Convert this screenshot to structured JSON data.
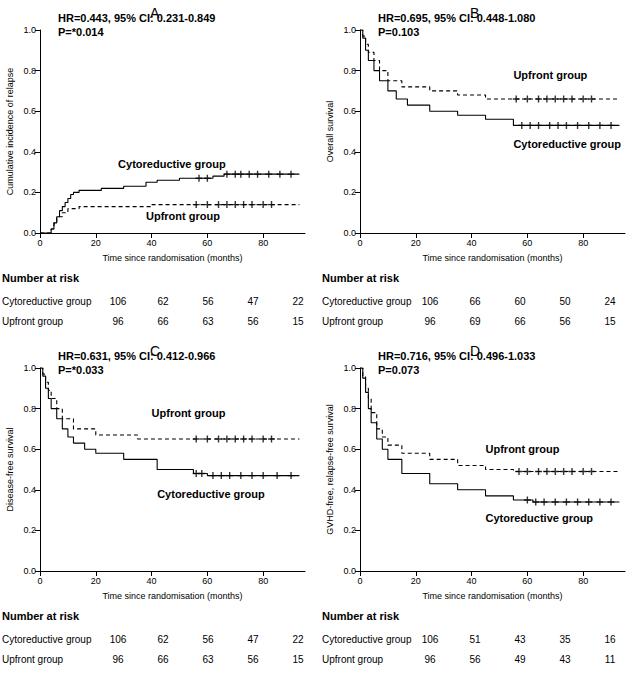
{
  "chart_data": [
    {
      "type": "line",
      "title": "A",
      "annotations": [
        "HR=0.443, 95% CI: 0.231-0.849",
        "P=*0.014"
      ],
      "x_label": "Time since randomisation (months)",
      "y_label": "Cumulative incidence of relapse",
      "xlim": [
        0,
        95
      ],
      "xticks": [
        0,
        20,
        40,
        60,
        80
      ],
      "ylim": [
        0,
        1
      ],
      "yticks": [
        {
          "value": 0,
          "label": "0.0"
        },
        {
          "value": 0.2,
          "label": "0.2"
        },
        {
          "value": 0.4,
          "label": "0.4"
        },
        {
          "value": 0.6,
          "label": "0.6"
        },
        {
          "value": 0.8,
          "label": "0.8"
        },
        {
          "value": 1,
          "label": "1.0"
        }
      ],
      "series": [
        {
          "name": "Cytoreductive group",
          "color": "#000000",
          "line_style": "solid",
          "x": [
            0,
            3,
            4,
            5,
            6,
            7,
            8,
            9,
            10,
            11,
            12,
            14,
            22,
            30,
            38,
            42,
            50,
            62,
            66,
            93
          ],
          "values": [
            0,
            0,
            0.02,
            0.05,
            0.08,
            0.11,
            0.13,
            0.15,
            0.17,
            0.19,
            0.2,
            0.21,
            0.22,
            0.23,
            0.25,
            0.26,
            0.27,
            0.28,
            0.29,
            0.29
          ],
          "censored_x": [
            57,
            60,
            67,
            70,
            72,
            75,
            78,
            82,
            86,
            90
          ]
        },
        {
          "name": "Upfront group",
          "color": "#000000",
          "line_style": "dashed",
          "x": [
            0,
            3,
            4,
            5,
            6,
            8,
            10,
            14,
            40,
            93
          ],
          "values": [
            0,
            0,
            0.02,
            0.05,
            0.08,
            0.1,
            0.12,
            0.13,
            0.14,
            0.14
          ],
          "censored_x": [
            56,
            60,
            64,
            67,
            70,
            73,
            76,
            80,
            83
          ]
        }
      ],
      "number_at_risk": {
        "title": "Number at risk",
        "rows": [
          {
            "name": "Cytoreductive group",
            "values": [
              106,
              62,
              56,
              47,
              22
            ]
          },
          {
            "name": "Upfront group",
            "values": [
              96,
              66,
              63,
              56,
              15
            ]
          }
        ]
      }
    },
    {
      "type": "line",
      "title": "B",
      "annotations": [
        "HR=0.695, 95% CI: 0.448-1.080",
        "P=0.103"
      ],
      "x_label": "Time since randomisation (months)",
      "y_label": "Overall survival",
      "xlim": [
        0,
        95
      ],
      "xticks": [
        0,
        20,
        40,
        60,
        80
      ],
      "ylim": [
        0,
        1
      ],
      "yticks": [
        {
          "value": 0,
          "label": "0.0"
        },
        {
          "value": 0.2,
          "label": "0.2"
        },
        {
          "value": 0.4,
          "label": "0.4"
        },
        {
          "value": 0.6,
          "label": "0.6"
        },
        {
          "value": 0.8,
          "label": "0.8"
        },
        {
          "value": 1,
          "label": "1.0"
        }
      ],
      "series": [
        {
          "name": "Cytoreductive group",
          "color": "#000000",
          "line_style": "solid",
          "x": [
            0,
            1,
            2,
            3,
            5,
            7,
            10,
            13,
            17,
            25,
            35,
            45,
            55,
            93
          ],
          "values": [
            1,
            0.96,
            0.9,
            0.85,
            0.8,
            0.75,
            0.7,
            0.66,
            0.63,
            0.6,
            0.58,
            0.56,
            0.53,
            0.53
          ],
          "censored_x": [
            58,
            61,
            64,
            68,
            71,
            74,
            78,
            82,
            86,
            90
          ]
        },
        {
          "name": "Upfront group",
          "color": "#000000",
          "line_style": "dashed",
          "x": [
            0,
            1,
            2,
            3,
            5,
            7,
            10,
            15,
            25,
            35,
            45,
            93
          ],
          "values": [
            1,
            0.97,
            0.93,
            0.89,
            0.85,
            0.8,
            0.75,
            0.72,
            0.7,
            0.68,
            0.66,
            0.66
          ],
          "censored_x": [
            56,
            60,
            64,
            67,
            70,
            73,
            76,
            80,
            83
          ]
        }
      ],
      "number_at_risk": {
        "title": "Number at risk",
        "rows": [
          {
            "name": "Cytoreductive group",
            "values": [
              106,
              66,
              60,
              50,
              24
            ]
          },
          {
            "name": "Upfront group",
            "values": [
              96,
              69,
              66,
              56,
              15
            ]
          }
        ]
      }
    },
    {
      "type": "line",
      "title": "C",
      "annotations": [
        "HR=0.631, 95% CI: 0.412-0.966",
        "P=*0.033"
      ],
      "x_label": "Time since randomisation (months)",
      "y_label": "Disease-free survival",
      "xlim": [
        0,
        95
      ],
      "xticks": [
        0,
        20,
        40,
        60,
        80
      ],
      "ylim": [
        0,
        1
      ],
      "yticks": [
        {
          "value": 0,
          "label": "0.0"
        },
        {
          "value": 0.2,
          "label": "0.2"
        },
        {
          "value": 0.4,
          "label": "0.4"
        },
        {
          "value": 0.6,
          "label": "0.6"
        },
        {
          "value": 0.8,
          "label": "0.8"
        },
        {
          "value": 1,
          "label": "1.0"
        }
      ],
      "series": [
        {
          "name": "Cytoreductive group",
          "color": "#000000",
          "line_style": "solid",
          "x": [
            0,
            1,
            2,
            3,
            4,
            6,
            8,
            10,
            12,
            16,
            20,
            30,
            42,
            55,
            60,
            93
          ],
          "values": [
            1,
            0.96,
            0.9,
            0.85,
            0.8,
            0.75,
            0.7,
            0.66,
            0.63,
            0.6,
            0.58,
            0.55,
            0.5,
            0.48,
            0.47,
            0.47
          ],
          "censored_x": [
            56,
            58,
            62,
            65,
            68,
            72,
            76,
            80,
            85,
            90
          ]
        },
        {
          "name": "Upfront group",
          "color": "#000000",
          "line_style": "dashed",
          "x": [
            0,
            1,
            2,
            3,
            4,
            6,
            8,
            12,
            20,
            35,
            93
          ],
          "values": [
            1,
            0.97,
            0.93,
            0.89,
            0.85,
            0.8,
            0.75,
            0.7,
            0.67,
            0.65,
            0.65
          ],
          "censored_x": [
            56,
            60,
            64,
            67,
            70,
            73,
            76,
            80,
            83
          ]
        }
      ],
      "number_at_risk": {
        "title": "Number at risk",
        "rows": [
          {
            "name": "Cytoreductive group",
            "values": [
              106,
              62,
              56,
              47,
              22
            ]
          },
          {
            "name": "Upfront group",
            "values": [
              96,
              66,
              63,
              56,
              15
            ]
          }
        ]
      }
    },
    {
      "type": "line",
      "title": "D",
      "annotations": [
        "HR=0.716, 95% CI: 0.496-1.033",
        "P=0.073"
      ],
      "x_label": "Time since randomisation (months)",
      "y_label": "GVHD-free, relapse-free survival",
      "xlim": [
        0,
        95
      ],
      "xticks": [
        0,
        20,
        40,
        60,
        80
      ],
      "ylim": [
        0,
        1
      ],
      "yticks": [
        {
          "value": 0,
          "label": "0.0"
        },
        {
          "value": 0.2,
          "label": "0.2"
        },
        {
          "value": 0.4,
          "label": "0.4"
        },
        {
          "value": 0.6,
          "label": "0.6"
        },
        {
          "value": 0.8,
          "label": "0.8"
        },
        {
          "value": 1,
          "label": "1.0"
        }
      ],
      "series": [
        {
          "name": "Cytoreductive group",
          "color": "#000000",
          "line_style": "solid",
          "x": [
            0,
            1,
            2,
            3,
            4,
            6,
            8,
            10,
            15,
            25,
            35,
            45,
            55,
            62,
            93
          ],
          "values": [
            1,
            0.95,
            0.88,
            0.8,
            0.73,
            0.65,
            0.6,
            0.55,
            0.48,
            0.43,
            0.4,
            0.37,
            0.35,
            0.34,
            0.34
          ],
          "censored_x": [
            60,
            63,
            66,
            70,
            74,
            78,
            82,
            86,
            90
          ]
        },
        {
          "name": "Upfront group",
          "color": "#000000",
          "line_style": "dashed",
          "x": [
            0,
            1,
            2,
            3,
            4,
            6,
            8,
            10,
            15,
            25,
            35,
            45,
            55,
            93
          ],
          "values": [
            1,
            0.96,
            0.9,
            0.85,
            0.78,
            0.7,
            0.66,
            0.62,
            0.58,
            0.55,
            0.52,
            0.5,
            0.49,
            0.49
          ],
          "censored_x": [
            57,
            60,
            64,
            67,
            70,
            73,
            76,
            80,
            83
          ]
        }
      ],
      "number_at_risk": {
        "title": "Number at risk",
        "rows": [
          {
            "name": "Cytoreductive group",
            "values": [
              106,
              51,
              43,
              35,
              16
            ]
          },
          {
            "name": "Upfront group",
            "values": [
              96,
              56,
              49,
              43,
              11
            ]
          }
        ]
      }
    }
  ]
}
